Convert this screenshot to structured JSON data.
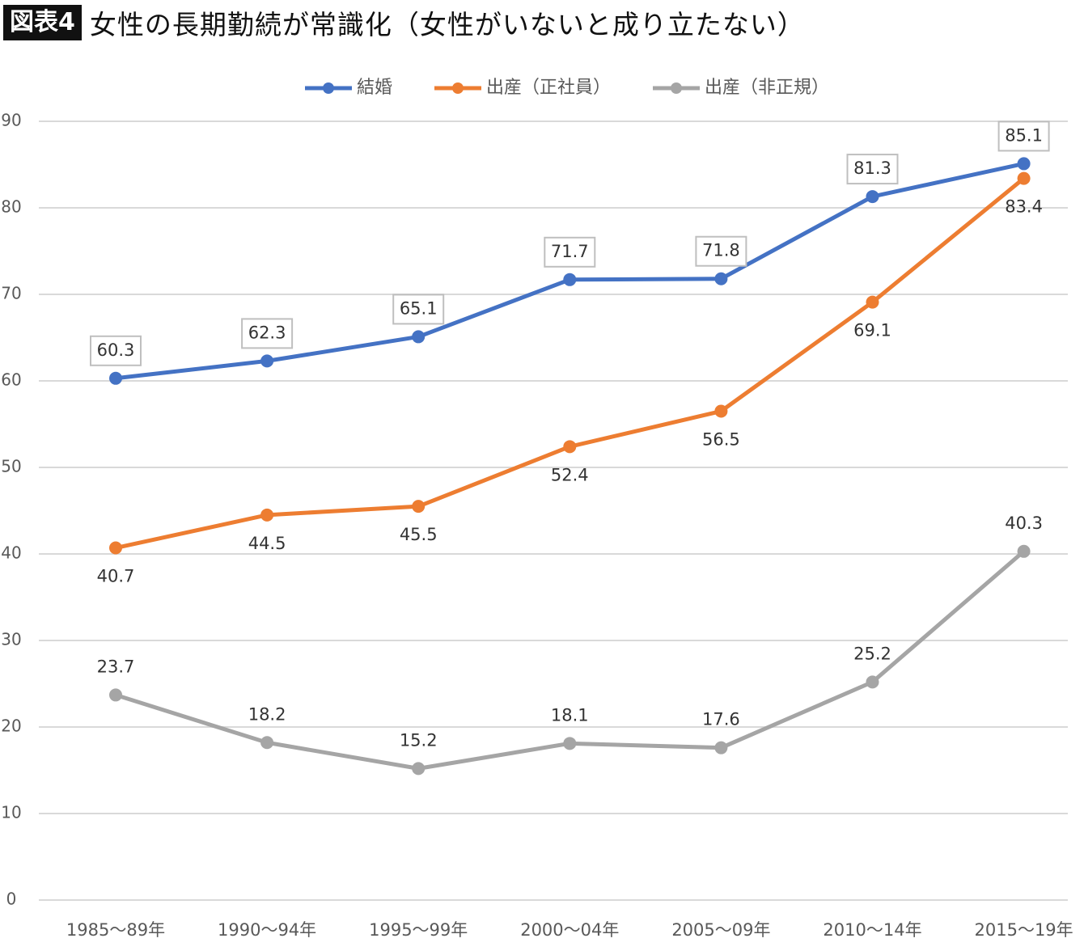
{
  "header": {
    "badge": "図表4",
    "title": "女性の長期勤続が常識化（女性がいないと成り立たない）"
  },
  "chart_data": {
    "type": "line",
    "title": "女性の長期勤続が常識化（女性がいないと成り立たない）",
    "categories": [
      "1985～89年",
      "1990～94年",
      "1995～99年",
      "2000～04年",
      "2005～09年",
      "2010～14年",
      "2015～19年"
    ],
    "series": [
      {
        "name": "結婚",
        "color": "#4472c4",
        "values": [
          60.3,
          62.3,
          65.1,
          71.7,
          71.8,
          81.3,
          85.1
        ],
        "label_position": "above",
        "label_boxed": true
      },
      {
        "name": "出産（正社員）",
        "color": "#ed7d31",
        "values": [
          40.7,
          44.5,
          45.5,
          52.4,
          56.5,
          69.1,
          83.4
        ],
        "label_position": "below",
        "label_boxed": false
      },
      {
        "name": "出産（非正規）",
        "color": "#a5a5a5",
        "values": [
          23.7,
          18.2,
          15.2,
          18.1,
          17.6,
          25.2,
          40.3
        ],
        "label_position": "above",
        "label_boxed": false
      }
    ],
    "yticks": [
      0,
      10,
      20,
      30,
      40,
      50,
      60,
      70,
      80,
      90
    ],
    "ylim": [
      0,
      90
    ],
    "grid": true,
    "legend": "top-center"
  }
}
